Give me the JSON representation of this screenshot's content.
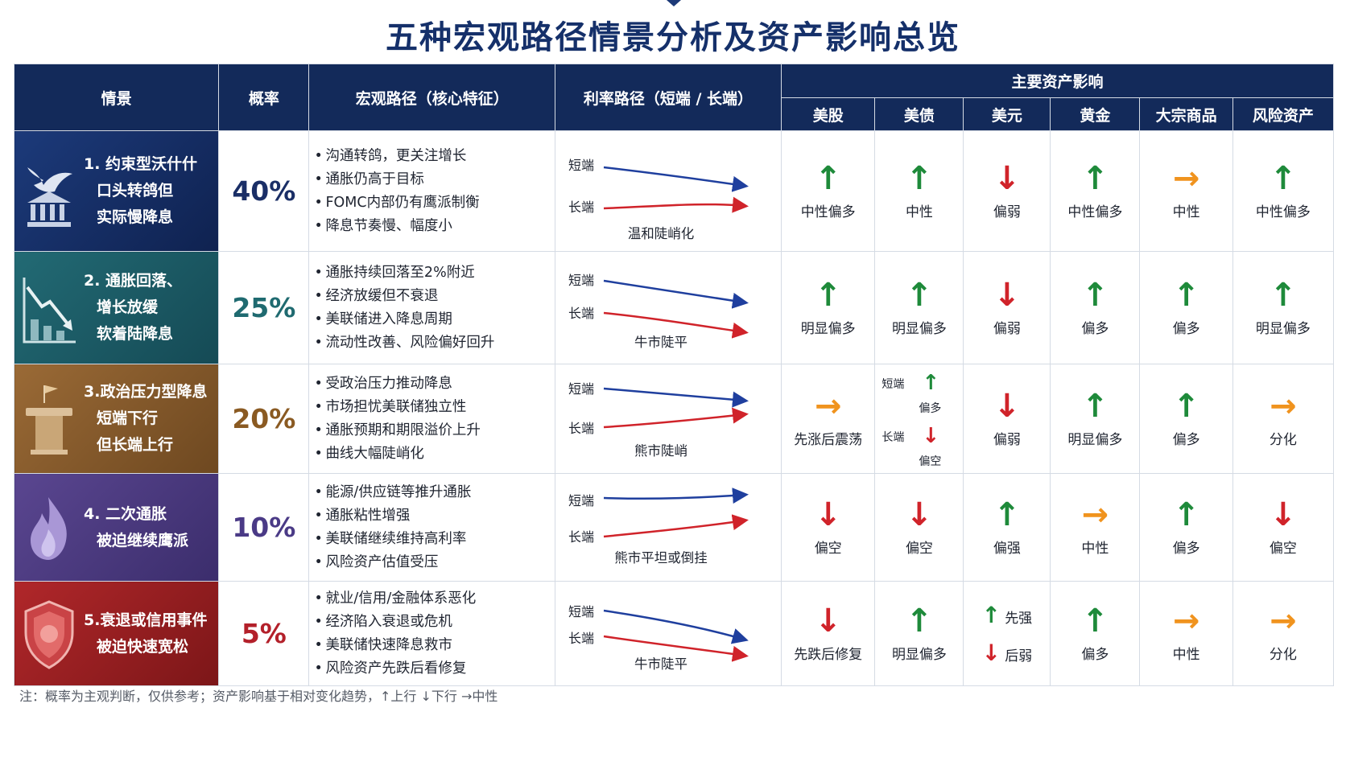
{
  "title": "五种宏观路径情景分析及资产影响总览",
  "header": {
    "scenario": "情景",
    "probability": "概率",
    "macro": "宏观路径（核心特征）",
    "rate": "利率路径（短端 / 长端）",
    "assets_group": "主要资产影响",
    "assets": [
      "美股",
      "美债",
      "美元",
      "黄金",
      "大宗商品",
      "风险资产"
    ]
  },
  "rate_labels": {
    "short": "短端",
    "long": "长端"
  },
  "colors": {
    "short_line": "#1f3f9e",
    "long_line": "#d0232a",
    "up": "#1e8a3a",
    "down": "#d0232a",
    "neutral": "#f0931e"
  },
  "rows": [
    {
      "scenario_lines": [
        "1. 约束型沃什什",
        "口头转鸽但",
        "实际慢降息"
      ],
      "icon": "dove-bank-icon",
      "probability": "40%",
      "prob_color": "#1a2e66",
      "macro": [
        "沟通转鸽，更关注增长",
        "通胀仍高于目标",
        "FOMC内部仍有鹰派制衡",
        "降息节奏慢、幅度小"
      ],
      "rate_caption": "温和陡峭化",
      "impacts": [
        {
          "dir": "up",
          "label": "中性偏多"
        },
        {
          "dir": "up",
          "label": "中性"
        },
        {
          "dir": "down",
          "label": "偏弱"
        },
        {
          "dir": "up",
          "label": "中性偏多"
        },
        {
          "dir": "right",
          "label": "中性"
        },
        {
          "dir": "up",
          "label": "中性偏多"
        }
      ]
    },
    {
      "scenario_lines": [
        "2. 通胀回落、",
        "增长放缓",
        "软着陆降息"
      ],
      "icon": "falling-chart-icon",
      "probability": "25%",
      "prob_color": "#1f6a70",
      "macro": [
        "通胀持续回落至2%附近",
        "经济放缓但不衰退",
        "美联储进入降息周期",
        "流动性改善、风险偏好回升"
      ],
      "rate_caption": "牛市陡平",
      "impacts": [
        {
          "dir": "up",
          "label": "明显偏多"
        },
        {
          "dir": "up",
          "label": "明显偏多"
        },
        {
          "dir": "down",
          "label": "偏弱"
        },
        {
          "dir": "up",
          "label": "偏多"
        },
        {
          "dir": "up",
          "label": "偏多"
        },
        {
          "dir": "up",
          "label": "明显偏多"
        }
      ]
    },
    {
      "scenario_lines": [
        "3.政治压力型降息",
        "短端下行",
        "但长端上行"
      ],
      "icon": "podium-icon",
      "probability": "20%",
      "prob_color": "#8a5a22",
      "macro": [
        "受政治压力推动降息",
        "市场担忧美联储独立性",
        "通胀预期和期限溢价上升",
        "曲线大幅陡峭化"
      ],
      "rate_caption": "熊市陡峭",
      "impacts": [
        {
          "dir": "right",
          "label": "先涨后震荡"
        },
        {
          "split": true,
          "short_label": "短端",
          "short_dir": "up",
          "short_text": "偏多",
          "long_label": "长端",
          "long_dir": "down",
          "long_text": "偏空"
        },
        {
          "dir": "down",
          "label": "偏弱"
        },
        {
          "dir": "up",
          "label": "明显偏多"
        },
        {
          "dir": "up",
          "label": "偏多"
        },
        {
          "dir": "right",
          "label": "分化"
        }
      ]
    },
    {
      "scenario_lines": [
        "4. 二次通胀",
        "被迫继续鹰派"
      ],
      "icon": "flame-icon",
      "probability": "10%",
      "prob_color": "#4a3a86",
      "macro": [
        "能源/供应链等推升通胀",
        "通胀粘性增强",
        "美联储继续维持高利率",
        "风险资产估值受压"
      ],
      "rate_caption": "熊市平坦或倒挂",
      "impacts": [
        {
          "dir": "down",
          "label": "偏空"
        },
        {
          "dir": "down",
          "label": "偏空"
        },
        {
          "dir": "up",
          "label": "偏强"
        },
        {
          "dir": "right",
          "label": "中性"
        },
        {
          "dir": "up",
          "label": "偏多"
        },
        {
          "dir": "down",
          "label": "偏空"
        }
      ]
    },
    {
      "scenario_lines": [
        "5.衰退或信用事件",
        "被迫快速宽松"
      ],
      "icon": "shield-icon",
      "probability": "5%",
      "prob_color": "#b3202a",
      "macro": [
        "就业/信用/金融体系恶化",
        "经济陷入衰退或危机",
        "美联储快速降息救市",
        "风险资产先跌后看修复"
      ],
      "rate_caption": "牛市陡平",
      "impacts": [
        {
          "dir": "down",
          "label": "先跌后修复"
        },
        {
          "dir": "up",
          "label": "明显偏多"
        },
        {
          "twostep": true,
          "first_dir": "up",
          "first_text": "先强",
          "second_dir": "down",
          "second_text": "后弱"
        },
        {
          "dir": "up",
          "label": "偏多"
        },
        {
          "dir": "right",
          "label": "中性"
        },
        {
          "dir": "right",
          "label": "分化"
        }
      ]
    }
  ],
  "footnote": "注：概率为主观判断，仅供参考；资产影响基于相对变化趋势，↑上行 ↓下行 →中性"
}
